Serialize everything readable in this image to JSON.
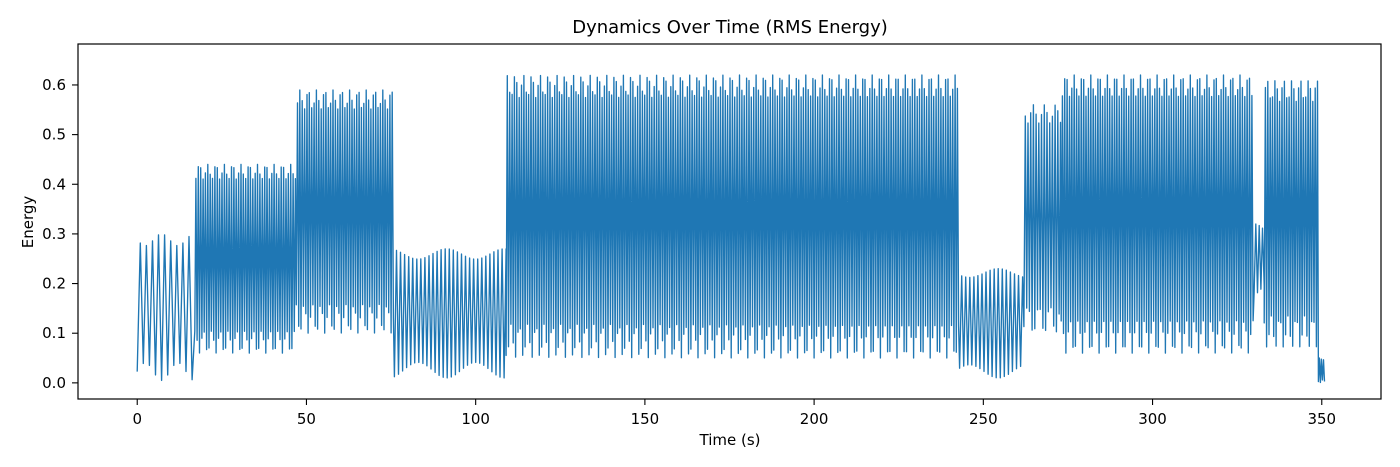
{
  "chart_data": {
    "type": "line",
    "title": "Dynamics Over Time (RMS Energy)",
    "xlabel": "Time (s)",
    "ylabel": "Energy",
    "xlim": [
      -17.5,
      367.5
    ],
    "ylim": [
      -0.0325,
      0.6825
    ],
    "xticks": [
      0,
      50,
      100,
      150,
      200,
      250,
      300,
      350
    ],
    "yticks": [
      0.0,
      0.1,
      0.2,
      0.3,
      0.4,
      0.5,
      0.6
    ],
    "xtick_labels": [
      "0",
      "50",
      "100",
      "150",
      "200",
      "250",
      "300",
      "350"
    ],
    "ytick_labels": [
      "0.0",
      "0.1",
      "0.2",
      "0.3",
      "0.4",
      "0.5",
      "0.6"
    ],
    "grid": false,
    "legend": "none",
    "series": [
      {
        "color": "#1f77b4",
        "x_start": 0,
        "x_end": 351,
        "segments": [
          {
            "from": 0,
            "to": 17,
            "low": 0.005,
            "high": 0.3,
            "step": 0.9
          },
          {
            "from": 17,
            "to": 47,
            "low": 0.06,
            "high": 0.44,
            "step": 0.35
          },
          {
            "from": 47,
            "to": 76,
            "low": 0.1,
            "high": 0.59,
            "step": 0.35
          },
          {
            "from": 76,
            "to": 109,
            "low": 0.01,
            "high": 0.27,
            "step": 0.6
          },
          {
            "from": 109,
            "to": 243,
            "low": 0.05,
            "high": 0.62,
            "step": 0.35
          },
          {
            "from": 243,
            "to": 262,
            "low": 0.01,
            "high": 0.23,
            "step": 0.6
          },
          {
            "from": 262,
            "to": 273,
            "low": 0.1,
            "high": 0.56,
            "step": 0.4
          },
          {
            "from": 273,
            "to": 330,
            "low": 0.06,
            "high": 0.62,
            "step": 0.35
          },
          {
            "from": 330,
            "to": 333,
            "low": 0.18,
            "high": 0.32,
            "step": 0.5
          },
          {
            "from": 333,
            "to": 349,
            "low": 0.07,
            "high": 0.61,
            "step": 0.35
          },
          {
            "from": 349,
            "to": 351,
            "low": 0.0,
            "high": 0.05,
            "step": 0.3
          }
        ]
      }
    ]
  }
}
